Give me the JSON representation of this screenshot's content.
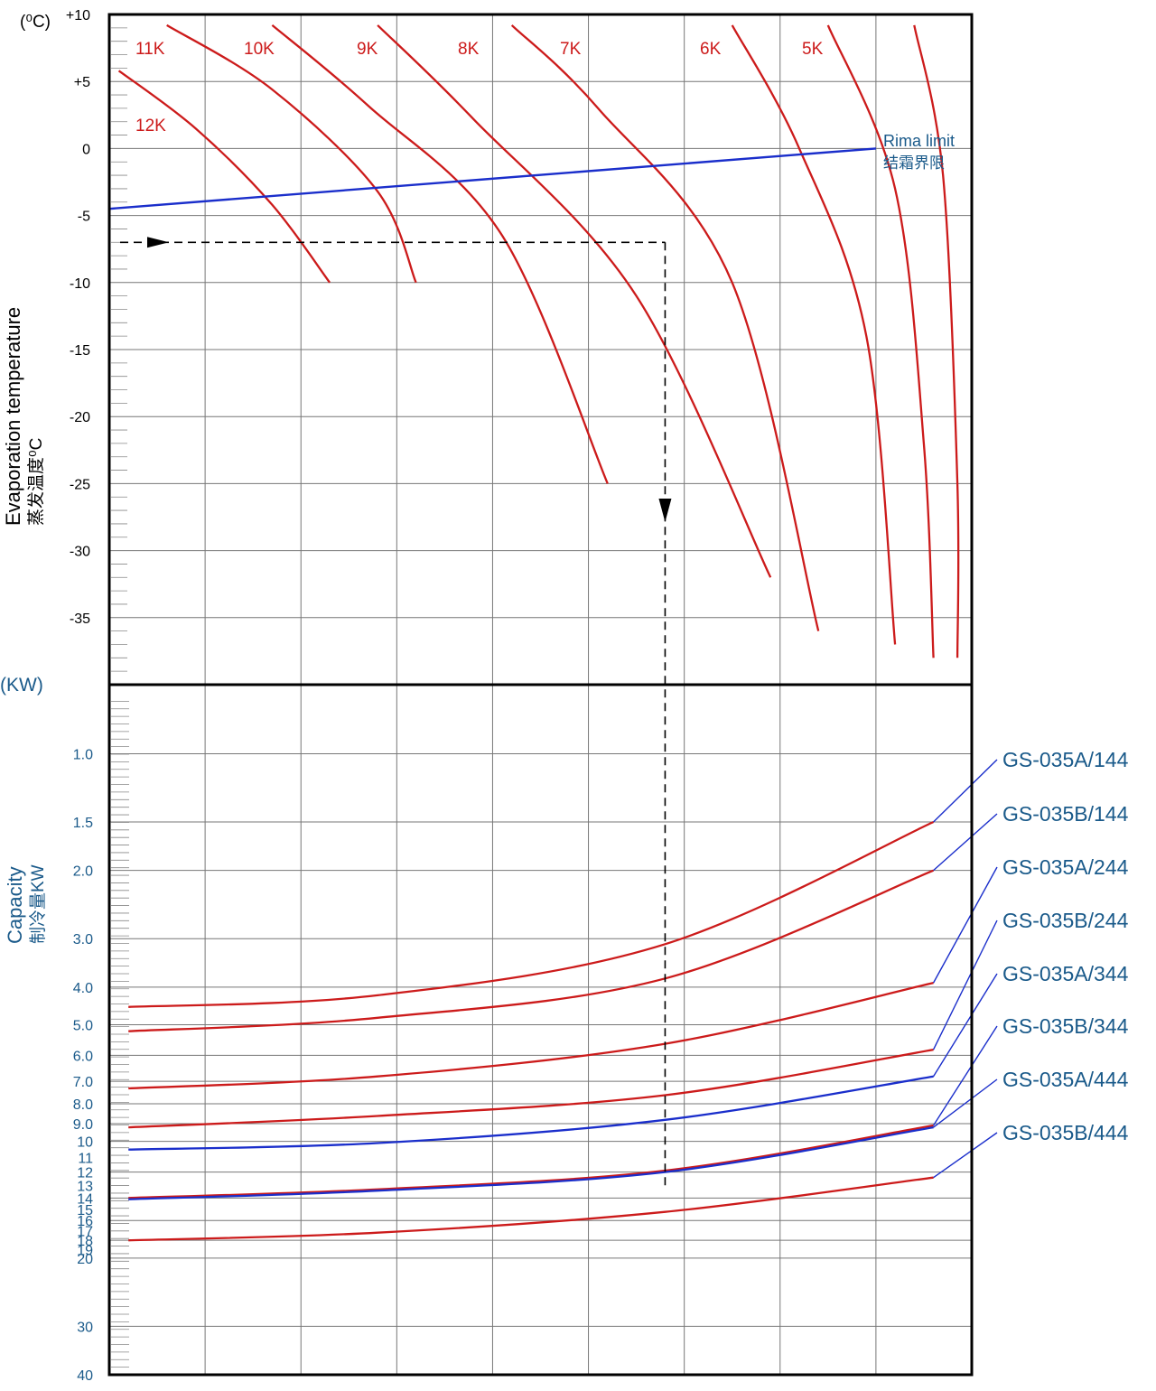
{
  "chart_data": [
    {
      "type": "line",
      "title": "",
      "unit_label": "(⁰C)",
      "ylabel": "Evaporation temperature",
      "ylabel_cn": "蒸发温度⁰C",
      "ylim": [
        -40,
        10
      ],
      "y_ticks": [
        "+10",
        "+5",
        "0",
        "-5",
        "-10",
        "-15",
        "-20",
        "-25",
        "-30",
        "-35"
      ],
      "x_range": [
        0,
        9
      ],
      "series": [
        {
          "name": "12K",
          "color": "#cc1b1b",
          "x": [
            0.1,
            0.9,
            1.7,
            2.3
          ],
          "y": [
            5.8,
            1.5,
            -4.2,
            -10
          ]
        },
        {
          "name": "11K",
          "color": "#cc1b1b",
          "x": [
            0.6,
            1.7,
            2.8,
            3.2
          ],
          "y": [
            9.2,
            4.4,
            -3.2,
            -10
          ]
        },
        {
          "name": "10K",
          "color": "#cc1b1b",
          "x": [
            1.7,
            2.7,
            4.1,
            5.2
          ],
          "y": [
            9.2,
            3.2,
            -6.5,
            -25
          ]
        },
        {
          "name": "9K",
          "color": "#cc1b1b",
          "x": [
            2.8,
            3.8,
            5.5,
            6.9
          ],
          "y": [
            9.2,
            2.2,
            -11,
            -32
          ]
        },
        {
          "name": "8K",
          "color": "#cc1b1b",
          "x": [
            4.2,
            5.1,
            6.5,
            7.4
          ],
          "y": [
            9.2,
            3,
            -10,
            -36
          ]
        },
        {
          "name": "7K",
          "color": "#cc1b1b",
          "x": [
            6.5,
            7.2,
            7.9,
            8.2
          ],
          "y": [
            9.2,
            0,
            -14,
            -37
          ]
        },
        {
          "name": "6K",
          "color": "#cc1b1b",
          "x": [
            7.5,
            8.2,
            8.5,
            8.6
          ],
          "y": [
            9.2,
            -3,
            -22,
            -38
          ]
        },
        {
          "name": "5K",
          "color": "#cc1b1b",
          "x": [
            8.4,
            8.7,
            8.85,
            8.85
          ],
          "y": [
            9.2,
            -2,
            -25,
            -38
          ]
        }
      ],
      "limit_line": {
        "name": "Rima limit",
        "name_cn": "结霜界限",
        "color": "#1a2ecb",
        "x": [
          0,
          8
        ],
        "y": [
          -4.5,
          0
        ]
      },
      "guide_line": {
        "arrow_right_y": -7,
        "down_x": 5.8
      }
    },
    {
      "type": "line",
      "unit_label": "(KW)",
      "ylabel": "Capacity",
      "ylabel_cn": "制冷量KW",
      "y_scale": "log",
      "ylim": [
        0.7,
        40
      ],
      "y_ticks": [
        "1.0",
        "1.5",
        "2.0",
        "3.0",
        "4.0",
        "5.0",
        "6.0",
        "7.0",
        "8.0",
        "9.0",
        "10",
        "11",
        "12",
        "13",
        "14",
        "15",
        "16",
        "17",
        "18",
        "19",
        "20",
        "30",
        "40"
      ],
      "x_range": [
        0,
        9
      ],
      "series": [
        {
          "name": "GS-035A/144",
          "color": "#cc1b1b",
          "x": [
            0.2,
            2.8,
            5.8,
            8.6
          ],
          "y": [
            4.5,
            4.2,
            3.1,
            1.5
          ]
        },
        {
          "name": "GS-035B/144",
          "color": "#cc1b1b",
          "x": [
            0.2,
            2.8,
            5.8,
            8.6
          ],
          "y": [
            5.2,
            4.8,
            3.8,
            2.0
          ]
        },
        {
          "name": "GS-035A/244",
          "color": "#cc1b1b",
          "x": [
            0.2,
            2.8,
            5.8,
            8.6
          ],
          "y": [
            7.3,
            6.8,
            5.6,
            3.9
          ]
        },
        {
          "name": "GS-035B/244",
          "color": "#cc1b1b",
          "x": [
            0.2,
            2.8,
            5.8,
            8.6
          ],
          "y": [
            9.2,
            8.6,
            7.6,
            5.8
          ]
        },
        {
          "name": "GS-035A/344",
          "color": "#1a2ecb",
          "x": [
            0.2,
            2.8,
            5.8,
            8.6
          ],
          "y": [
            10.5,
            10.1,
            8.8,
            6.8
          ]
        },
        {
          "name": "GS-035B/344",
          "color": "#cc1b1b",
          "x": [
            0.2,
            2.8,
            5.8,
            8.6
          ],
          "y": [
            14,
            13.3,
            11.9,
            9.1
          ]
        },
        {
          "name": "GS-035A/444",
          "color": "#1a2ecb",
          "x": [
            0.2,
            2.8,
            5.8,
            8.6
          ],
          "y": [
            14.1,
            13.4,
            12.0,
            9.2
          ]
        },
        {
          "name": "GS-035B/444",
          "color": "#cc1b1b",
          "x": [
            0.2,
            2.8,
            5.8,
            8.6
          ],
          "y": [
            18,
            17.2,
            15.2,
            12.4
          ]
        }
      ]
    }
  ]
}
